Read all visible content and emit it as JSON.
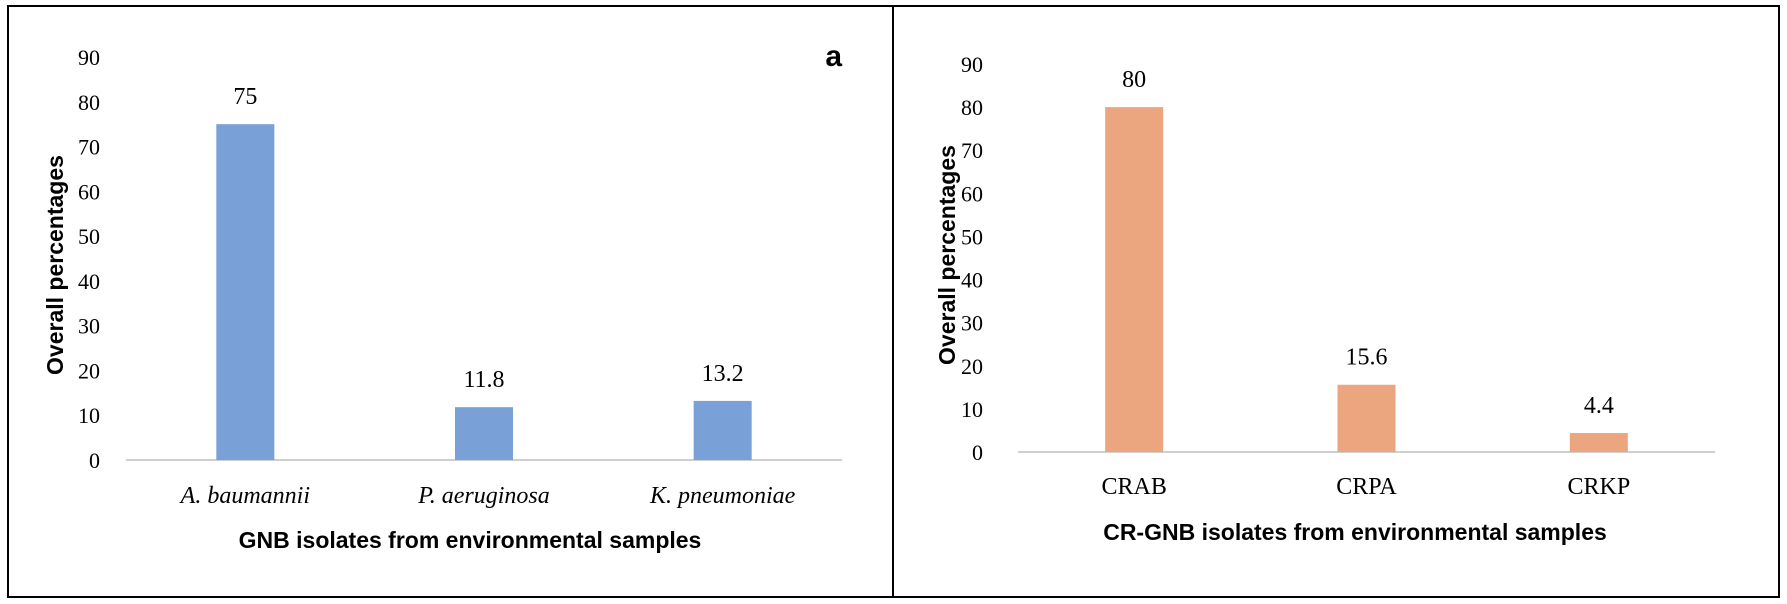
{
  "chart_data": [
    {
      "type": "bar",
      "panel_label": "a",
      "categories": [
        "A. baumannii",
        "P. aeruginosa",
        "K. pneumoniae"
      ],
      "values": [
        75,
        11.8,
        13.2
      ],
      "value_labels": [
        "75",
        "11.8",
        "13.2"
      ],
      "title": "",
      "xlabel": "GNB isolates from environmental samples",
      "ylabel": "Overall percentages",
      "ylim": [
        0,
        90
      ],
      "yticks": [
        0,
        10,
        20,
        30,
        40,
        50,
        60,
        70,
        80,
        90
      ],
      "italic_categories": true,
      "bar_color": "#7aa0d8",
      "grid": false
    },
    {
      "type": "bar",
      "panel_label": "",
      "categories": [
        "CRAB",
        "CRPA",
        "CRKP"
      ],
      "values": [
        80,
        15.6,
        4.4
      ],
      "value_labels": [
        "80",
        "15.6",
        "4.4"
      ],
      "title": "",
      "xlabel": "CR-GNB isolates from environmental samples",
      "ylabel": "Overall percentages",
      "ylim": [
        0,
        90
      ],
      "yticks": [
        0,
        10,
        20,
        30,
        40,
        50,
        60,
        70,
        80,
        90
      ],
      "italic_categories": false,
      "bar_color": "#eba57f",
      "grid": false
    }
  ]
}
